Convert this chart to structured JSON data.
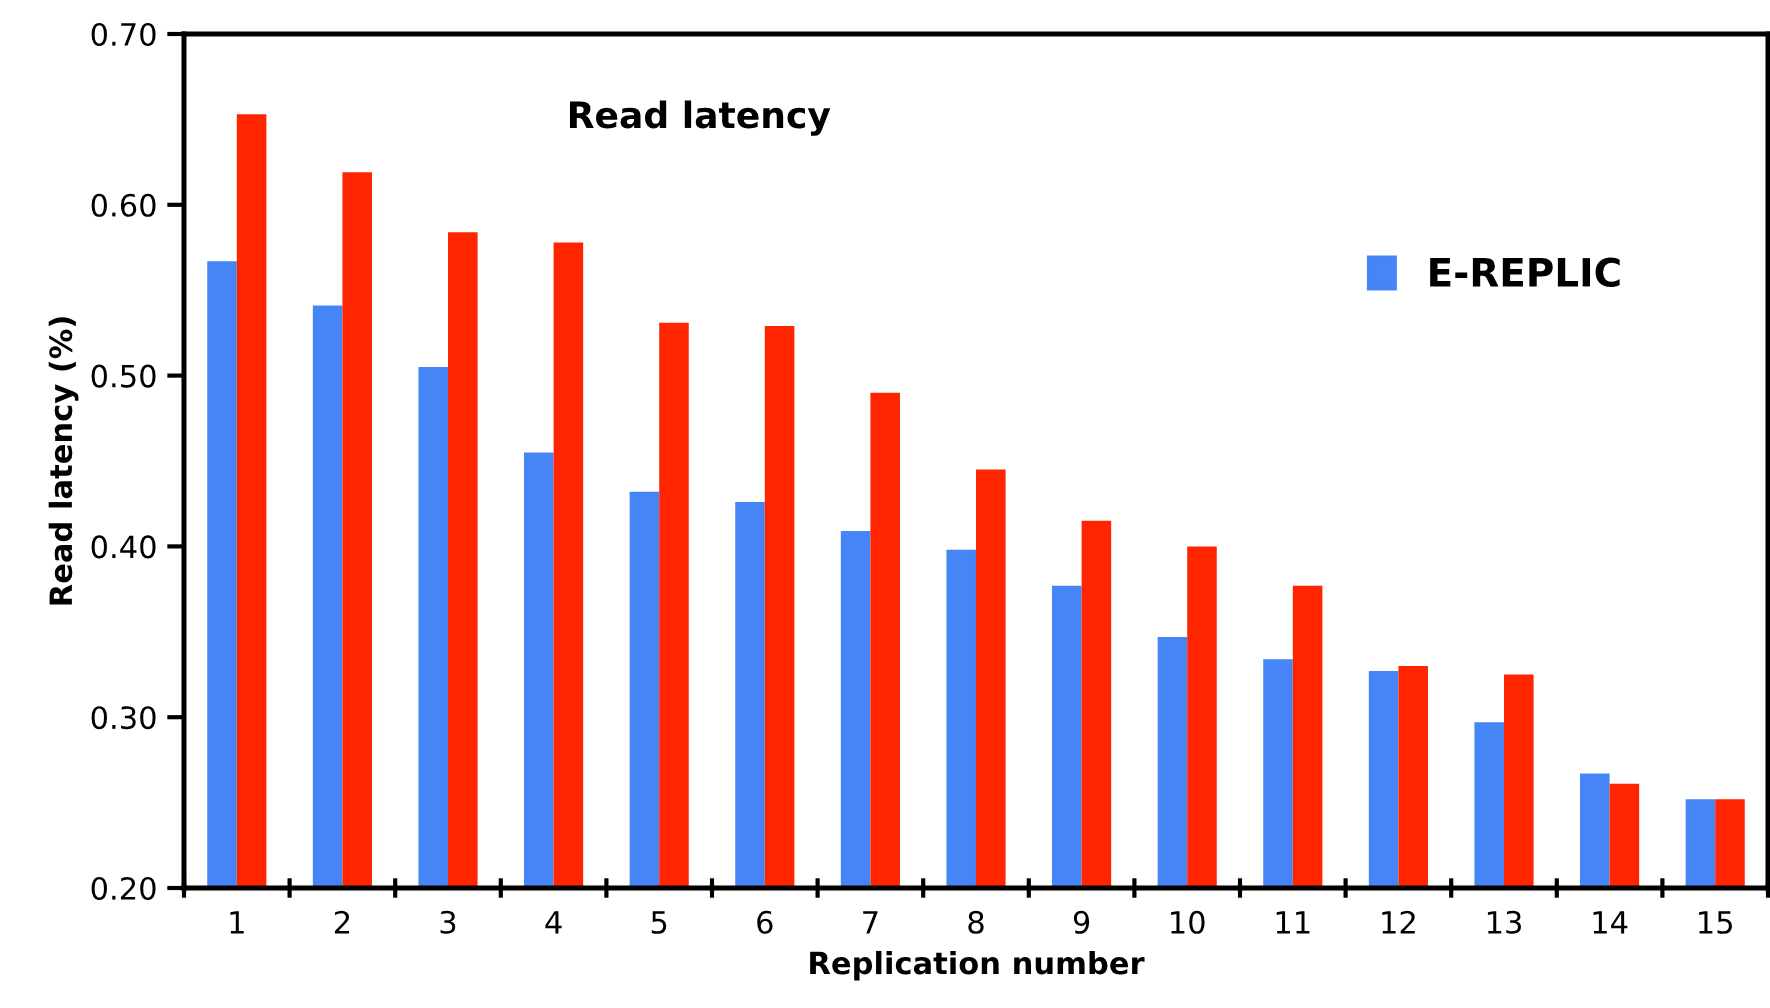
{
  "chart_data": {
    "type": "bar",
    "title": "Read latency",
    "xlabel": "Replication number",
    "ylabel": "Read latency (%)",
    "categories": [
      "1",
      "2",
      "3",
      "4",
      "5",
      "6",
      "7",
      "8",
      "9",
      "10",
      "11",
      "12",
      "13",
      "14",
      "15"
    ],
    "series": [
      {
        "name": "E-REPLIC",
        "color": "#4585f5",
        "values": [
          0.567,
          0.541,
          0.505,
          0.455,
          0.432,
          0.426,
          0.409,
          0.398,
          0.377,
          0.347,
          0.334,
          0.327,
          0.297,
          0.267,
          0.252
        ]
      },
      {
        "color": "#fe2500",
        "values": [
          0.653,
          0.619,
          0.584,
          0.578,
          0.531,
          0.529,
          0.49,
          0.445,
          0.415,
          0.4,
          0.377,
          0.33,
          0.325,
          0.261,
          0.252
        ]
      }
    ],
    "ylim": [
      0.2,
      0.7
    ],
    "yticks": [
      {
        "value": 0.2,
        "label": "0.20"
      },
      {
        "value": 0.3,
        "label": "0.30"
      },
      {
        "value": 0.4,
        "label": "0.40"
      },
      {
        "value": 0.5,
        "label": "0.50"
      },
      {
        "value": 0.6,
        "label": "0.60"
      },
      {
        "value": 0.7,
        "label": "0.70"
      }
    ],
    "grid": false,
    "legend": "top right"
  }
}
